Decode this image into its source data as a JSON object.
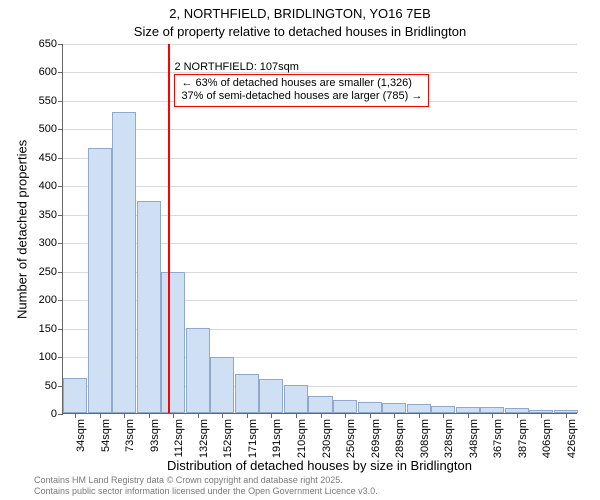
{
  "title_line1": "2, NORTHFIELD, BRIDLINGTON, YO16 7EB",
  "title_line2": "Size of property relative to detached houses in Bridlington",
  "y_axis_title": "Number of detached properties",
  "x_axis_title": "Distribution of detached houses by size in Bridlington",
  "footer_line1": "Contains HM Land Registry data © Crown copyright and database right 2025.",
  "footer_line2": "Contains public sector information licensed under the Open Government Licence v3.0.",
  "chart": {
    "type": "histogram",
    "background_color": "#ffffff",
    "grid_color": "#d9d9d9",
    "axis_color": "#666666",
    "bar_fill": "#cfe0f5",
    "bar_stroke": "#8fa8cc",
    "bar_stroke_width": 1,
    "ylim": [
      0,
      650
    ],
    "ytick_step": 50,
    "x_labels": [
      "34sqm",
      "54sqm",
      "73sqm",
      "93sqm",
      "112sqm",
      "132sqm",
      "152sqm",
      "171sqm",
      "191sqm",
      "210sqm",
      "230sqm",
      "250sqm",
      "269sqm",
      "289sqm",
      "308sqm",
      "328sqm",
      "348sqm",
      "367sqm",
      "387sqm",
      "406sqm",
      "426sqm"
    ],
    "values": [
      62,
      465,
      528,
      372,
      248,
      150,
      98,
      68,
      60,
      50,
      30,
      22,
      20,
      18,
      15,
      12,
      10,
      10,
      8,
      5,
      5
    ],
    "label_fontsize": 11,
    "title_fontsize": 13,
    "axis_title_fontsize": 13
  },
  "marker": {
    "color": "#ff0000",
    "position_index": 3.8,
    "label": "2 NORTHFIELD: 107sqm"
  },
  "annotation": {
    "border_color": "#ff0000",
    "background": "#ffffff",
    "line1": "← 63% of detached houses are smaller (1,326)",
    "line2": "37% of semi-detached houses are larger (785) →"
  },
  "footer_color": "#7a7a7a"
}
